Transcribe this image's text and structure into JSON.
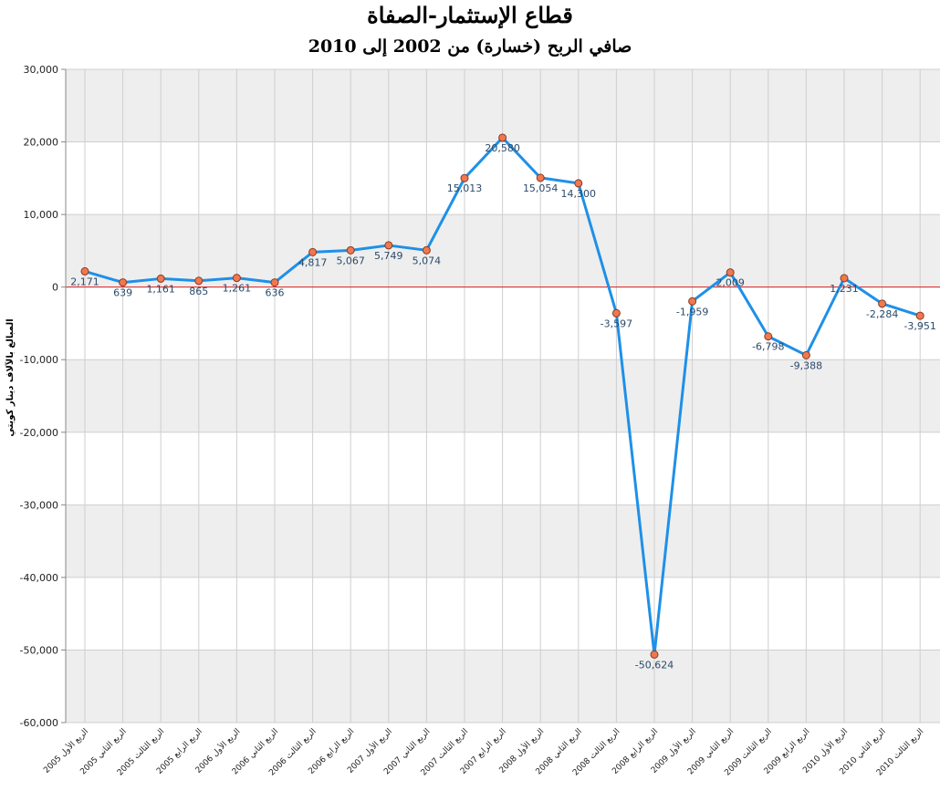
{
  "chart_data": {
    "type": "line",
    "title": "قطاع الإستثمار-الصفاة",
    "subtitle": "صافي الربح (خسارة) من 2002 إلى 2010",
    "ylabel": "المبالغ بالآلاف دينار كويتي",
    "xlabel": "",
    "ylim": [
      -60000,
      30000
    ],
    "yticks": [
      30000,
      20000,
      10000,
      0,
      -10000,
      -20000,
      -30000,
      -40000,
      -50000,
      -60000
    ],
    "ytick_labels": [
      "30,000",
      "20,000",
      "10,000",
      "0",
      "-10,000",
      "-20,000",
      "-30,000",
      "-40,000",
      "-50,000",
      "-60,000"
    ],
    "grid": true,
    "zero_line_color": "#e02020",
    "line_color": "#1e90e8",
    "marker_color": "#f07850",
    "categories": [
      "الربع الأول 2005",
      "الربع الثاني 2005",
      "الربع الثالث 2005",
      "الربع الرابع 2005",
      "الربع الأول 2006",
      "الربع الثاني 2006",
      "الربع الثالث 2006",
      "الربع الرابع 2006",
      "الربع الأول 2007",
      "الربع الثاني 2007",
      "الربع الثالث 2007",
      "الربع الرابع 2007",
      "الربع الأول 2008",
      "الربع الثاني 2008",
      "الربع الثالث 2008",
      "الربع الرابع 2008",
      "الربع الأول 2009",
      "الربع الثاني 2009",
      "الربع الثالث 2009",
      "الربع الرابع 2009",
      "الربع الأول 2010",
      "الربع الثاني 2010",
      "الربع الثالث 2010"
    ],
    "series": [
      {
        "values": [
          2171,
          639,
          1161,
          865,
          1261,
          636,
          4817,
          5067,
          5749,
          5074,
          15013,
          20580,
          15054,
          14300,
          -3597,
          -50624,
          -1959,
          2009,
          -6798,
          -9388,
          1231,
          -2284,
          -3951
        ],
        "labels": [
          "2,171",
          "639",
          "1,161",
          "865",
          "1,261",
          "636",
          "4,817",
          "5,067",
          "5,749",
          "5,074",
          "15,013",
          "20,580",
          "15,054",
          "14,300",
          "-3,597",
          "-50,624",
          "-1,959",
          "2,009",
          "-6,798",
          "-9,388",
          "1,231",
          "-2,284",
          "-3,951"
        ]
      }
    ]
  }
}
